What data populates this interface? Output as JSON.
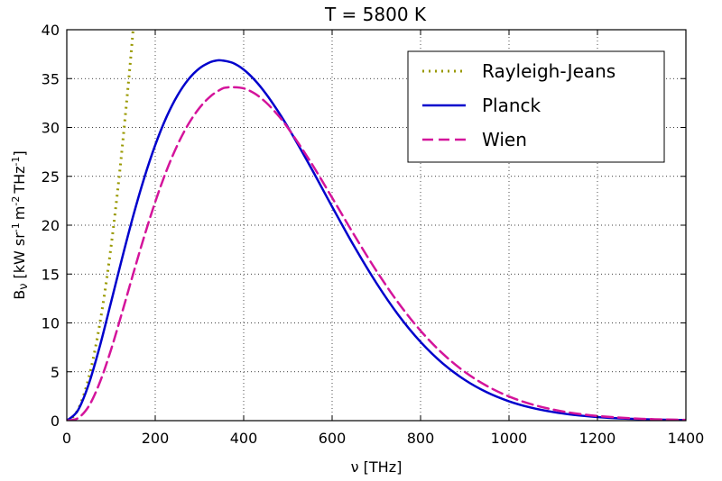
{
  "chart_data": {
    "type": "line",
    "title": "T = 5800 K",
    "xlabel": "ν [THz]",
    "ylabel": {
      "base": "B",
      "sub": "ν",
      "units_open": "[kW sr",
      "sr_exp": "-1",
      "m_text": "m",
      "m_exp": "-2",
      "thz_text": "THz",
      "thz_exp": "-1",
      "units_close": "]"
    },
    "xlim": [
      0,
      1400
    ],
    "ylim": [
      0,
      40
    ],
    "x_ticks": [
      "0",
      "200",
      "400",
      "600",
      "800",
      "1000",
      "1200",
      "1400"
    ],
    "y_ticks": [
      "0",
      "5",
      "10",
      "15",
      "20",
      "25",
      "30",
      "35",
      "40"
    ],
    "grid": true,
    "grid_style": "dotted",
    "legend_position": "top-right",
    "temperature_K": 5800,
    "series": [
      {
        "name": "Rayleigh-Jeans",
        "color": "#999900",
        "dash": "dotted",
        "x": [
          0,
          20,
          40,
          60,
          80,
          100,
          120,
          140,
          150
        ],
        "y": [
          0,
          0.71,
          2.84,
          6.4,
          11.38,
          17.78,
          25.6,
          34.85,
          40.0
        ]
      },
      {
        "name": "Planck",
        "color": "#0000cc",
        "dash": "solid",
        "x": [
          0,
          25,
          50,
          75,
          100,
          125,
          150,
          175,
          200,
          225,
          250,
          275,
          300,
          325,
          340,
          350,
          375,
          400,
          425,
          450,
          475,
          500,
          550,
          600,
          650,
          700,
          750,
          800,
          850,
          900,
          950,
          1000,
          1050,
          1100,
          1150,
          1200,
          1250,
          1300,
          1350,
          1400
        ],
        "y": [
          0,
          1.04,
          3.78,
          7.66,
          12.1,
          16.61,
          20.92,
          24.82,
          28.2,
          31.02,
          33.25,
          34.92,
          36.05,
          36.69,
          36.86,
          36.86,
          36.61,
          35.92,
          34.85,
          33.47,
          31.84,
          30.03,
          26.06,
          21.89,
          17.83,
          14.09,
          10.8,
          8.06,
          5.86,
          4.17,
          2.9,
          1.98,
          1.33,
          0.88,
          0.57,
          0.37,
          0.23,
          0.15,
          0.09,
          0.06
        ]
      },
      {
        "name": "Wien",
        "color": "#d4149b",
        "dash": "dashed",
        "x": [
          0,
          25,
          50,
          75,
          100,
          125,
          150,
          175,
          200,
          225,
          250,
          275,
          300,
          325,
          350,
          362,
          375,
          400,
          425,
          450,
          475,
          500,
          550,
          600,
          650,
          700,
          750,
          800,
          850,
          900,
          950,
          1000,
          1050,
          1100,
          1150,
          1200,
          1250,
          1300,
          1350,
          1400
        ],
        "y": [
          0,
          0.25,
          1.5,
          3.95,
          7.25,
          11.06,
          15.0,
          18.83,
          22.38,
          25.52,
          28.18,
          30.34,
          32.0,
          33.19,
          33.94,
          34.09,
          34.12,
          34.0,
          33.47,
          32.58,
          31.39,
          29.95,
          26.57,
          22.81,
          18.99,
          15.34,
          12.04,
          9.2,
          6.86,
          4.99,
          3.55,
          2.47,
          1.69,
          1.13,
          0.74,
          0.48,
          0.31,
          0.19,
          0.12,
          0.08
        ]
      }
    ]
  }
}
